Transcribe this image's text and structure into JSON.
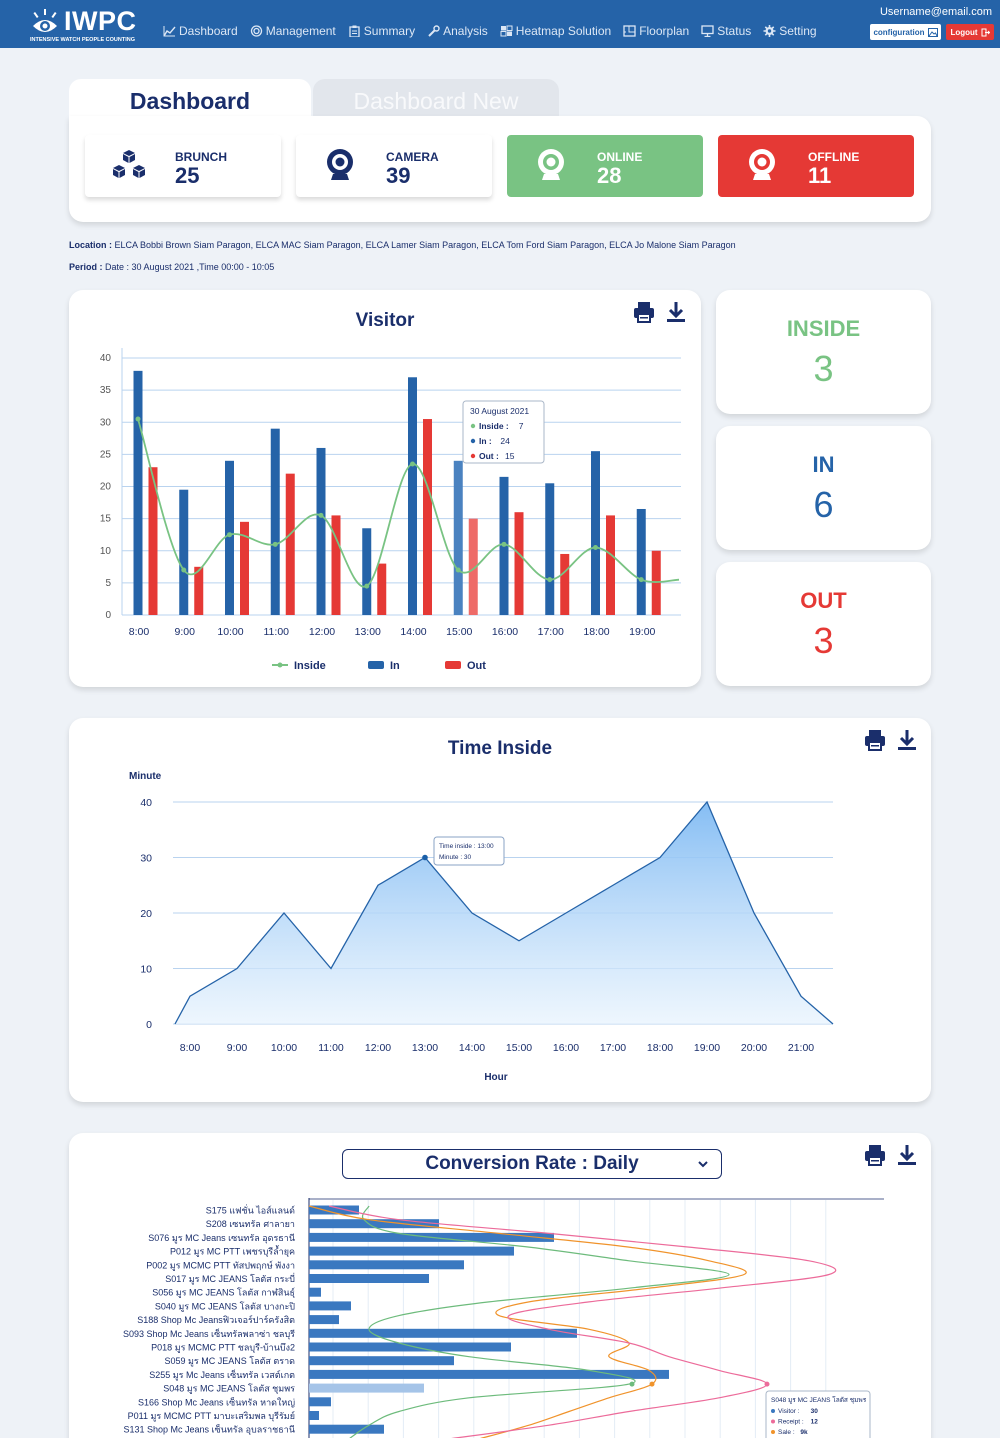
{
  "header": {
    "logo_text": "IWPC",
    "logo_sub": "INTENSIVE WATCH PEOPLE COUNTING",
    "user_email": "Username@email.com",
    "config_label": "configuration",
    "logout_label": "Logout",
    "nav": [
      {
        "label": "Dashboard",
        "icon": "chart-line-icon"
      },
      {
        "label": "Management",
        "icon": "spiral-icon"
      },
      {
        "label": "Summary",
        "icon": "clipboard-icon"
      },
      {
        "label": "Analysis",
        "icon": "tools-icon"
      },
      {
        "label": "Heatmap Solution",
        "icon": "heatmap-icon"
      },
      {
        "label": "Floorplan",
        "icon": "floorplan-icon"
      },
      {
        "label": "Status",
        "icon": "monitor-icon"
      },
      {
        "label": "Setting",
        "icon": "gear-icon"
      }
    ]
  },
  "tabs": {
    "active": "Dashboard",
    "inactive": "Dashboard New"
  },
  "stats": [
    {
      "label": "BRUNCH",
      "value": "25",
      "icon": "cubes-icon",
      "style": "white"
    },
    {
      "label": "CAMERA",
      "value": "39",
      "icon": "webcam-icon",
      "style": "white"
    },
    {
      "label": "ONLINE",
      "value": "28",
      "icon": "webcam-icon",
      "style": "green"
    },
    {
      "label": "OFFLINE",
      "value": "11",
      "icon": "webcam-icon",
      "style": "red"
    }
  ],
  "location": {
    "label": "Location :",
    "text": "ELCA Bobbi Brown Siam Paragon, ELCA MAC Siam Paragon, ELCA Lamer Siam Paragon, ELCA Tom Ford Siam Paragon, ELCA Jo Malone Siam Paragon"
  },
  "period": {
    "label": "Period :",
    "text": "Date : 30 August 2021 ,Time 00:00 - 10:05"
  },
  "kpis": [
    {
      "label": "INSIDE",
      "value": "3",
      "color": "#79c383"
    },
    {
      "label": "IN",
      "value": "6",
      "color": "#2563a8"
    },
    {
      "label": "OUT",
      "value": "3",
      "color": "#e53935"
    }
  ],
  "colors": {
    "in": "#2563a8",
    "out": "#e53935",
    "inside": "#79c383",
    "area": "#90c4f5"
  },
  "conversion": {
    "select_label": "Conversion Rate : Daily"
  },
  "chart_data": [
    {
      "type": "bar",
      "title": "Visitor",
      "categories": [
        "8:00",
        "9:00",
        "10:00",
        "11:00",
        "12:00",
        "13:00",
        "14:00",
        "15:00",
        "16:00",
        "17:00",
        "18:00",
        "19:00"
      ],
      "series": [
        {
          "name": "In",
          "values": [
            38,
            19.5,
            24,
            29,
            26,
            13.5,
            37,
            24,
            21.5,
            20.5,
            25.5,
            16.5
          ]
        },
        {
          "name": "Out",
          "values": [
            23,
            7.5,
            14.5,
            22,
            15.5,
            8,
            30.5,
            15,
            16,
            9.5,
            15.5,
            10
          ]
        },
        {
          "name": "Inside",
          "type": "line",
          "values": [
            30.5,
            7,
            12.5,
            11,
            15.5,
            4.5,
            23.5,
            7,
            11,
            5.5,
            10.5,
            5.5
          ]
        }
      ],
      "ylim": [
        0,
        40
      ],
      "yticks": [
        0,
        5,
        10,
        15,
        20,
        25,
        30,
        35,
        40
      ],
      "legend": "bottom",
      "tooltip": {
        "date": "30 August 2021",
        "inside_label": "Inside :",
        "inside": "7",
        "in_label": "In :",
        "in": "24",
        "out_label": "Out :",
        "out": "15"
      }
    },
    {
      "type": "area",
      "title": "Time Inside",
      "xlabel": "Hour",
      "ylabel": "Minute",
      "categories": [
        "8:00",
        "9:00",
        "10:00",
        "11:00",
        "12:00",
        "13:00",
        "14:00",
        "15:00",
        "16:00",
        "17:00",
        "18:00",
        "19:00",
        "20:00",
        "21:00"
      ],
      "values": [
        5,
        10,
        20,
        10,
        25,
        30,
        20,
        15,
        20,
        25,
        30,
        40,
        20,
        5
      ],
      "ylim": [
        0,
        40
      ],
      "yticks": [
        0,
        10,
        20,
        30,
        40
      ],
      "tooltip": {
        "line1": "Time inside : 13:00",
        "line2": "Minute : 30"
      }
    },
    {
      "type": "bar",
      "title": "Conversion Rate : Daily",
      "orientation": "horizontal",
      "categories": [
        "S175 แฟชั่น ไอส์แลนด์",
        "S208 เซนทรัล ศาลายา",
        "S076 มูร MC Jeans เซนทรัล อุดรธานี",
        "P012 มูร MC PTT เพชรบุรีล้ำยุค",
        "P002 มูร MCMC PTT ทัสปพฤกษ์ พังงา",
        "S017 มูร MC JEANS โลตัส กระบี่",
        "S056 มูร MC JEANS โลตัส กาฬสินธุ์",
        "S040 มูร MC JEANS โลตัส บางกะปิ",
        "S188 Shop Mc Jeansฟิวเจอร์ปาร์ครังสิต",
        "S093 Shop Mc Jeans เซ็นทรัลพลาซ่า ชลบุรี",
        "P018 มูร MCMC PTT ชลบุรี-บ้านบึง2",
        "S059 มูร MC JEANS โลตัส ตราด",
        "S255 มูร Mc Jeans เซ็นทรัล เวสต์เกต",
        "S048 มูร MC JEANS โลตัส ชุมพร",
        "S166 Shop Mc Jeans เซ็นทรัล หาดใหญ่",
        "P011 มูร MCMC PTT มาบะเสริมพล บุรีรัมย์",
        "S131 Shop Mc Jeans เซ็นทรัล อุบลราชธานี"
      ],
      "values": [
        50,
        130,
        245,
        205,
        155,
        120,
        12,
        42,
        30,
        268,
        202,
        145,
        360,
        115,
        22,
        10,
        75
      ],
      "highlight_index": 13,
      "series_lines": [
        "Visitor",
        "Receipt",
        "Sale"
      ],
      "tooltip": {
        "title": "S048 มูร MC JEANS โลตัส ชุมพร",
        "visitor_label": "Visitor :",
        "visitor": "30",
        "receipt_label": "Receipt :",
        "receipt": "12",
        "sale_label": "Sale :",
        "sale": "9k"
      }
    }
  ]
}
